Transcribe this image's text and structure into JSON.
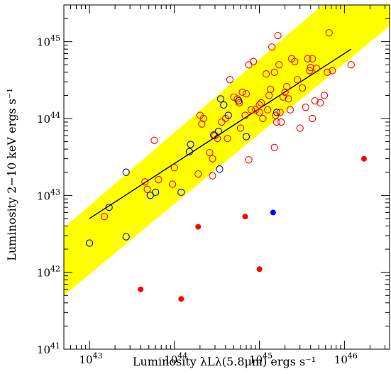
{
  "chart_data": {
    "type": "scatter",
    "title": "",
    "xlabel": "Luminosity λLλ(5.8μm) ergs s⁻¹",
    "ylabel": "Luminosity 2−10 keV ergs s⁻¹",
    "xscale": "log",
    "yscale": "log",
    "xlim": [
      5e+42,
      3.4e+46
    ],
    "ylim": [
      1e+41,
      3e+45
    ],
    "grid": false,
    "legend": "none",
    "x_ticks": [
      {
        "value": 1e+43,
        "label": "10^43"
      },
      {
        "value": 1e+44,
        "label": "10^44"
      },
      {
        "value": 1e+45,
        "label": "10^45"
      },
      {
        "value": 1e+46,
        "label": "10^46"
      }
    ],
    "y_ticks": [
      {
        "value": 1e+41,
        "label": "10^41"
      },
      {
        "value": 1e+42,
        "label": "10^42"
      },
      {
        "value": 1e+43,
        "label": "10^43"
      },
      {
        "value": 1e+44,
        "label": "10^44"
      },
      {
        "value": 1e+45,
        "label": "10^45"
      }
    ],
    "band": {
      "color": "#ffff00",
      "lower": [
        [
          5e+42,
          5e+41
        ],
        [
          3.4e+46,
          1.6e+45
        ]
      ],
      "upper": [
        [
          5e+42,
          3.8e+42
        ],
        [
          3.4e+46,
          1.7e+46
        ]
      ]
    },
    "fit_line": {
      "color": "#000000",
      "points": [
        [
          1e+43,
          5e+42
        ],
        [
          1.2e+46,
          8e+44
        ]
      ]
    },
    "series": [
      {
        "marker": "open-circle",
        "color": "#ff0000",
        "points": [
          [
            1.5e+43,
            5.3e+42
          ],
          [
            4.5e+43,
            1.5e+43
          ],
          [
            5.8e+43,
            5.2e+43
          ],
          [
            4.8e+43,
            1.2e+43
          ],
          [
            6.5e+43,
            1.6e+43
          ],
          [
            9.5e+43,
            1.4e+43
          ],
          [
            1e+44,
            2.3e+43
          ],
          [
            1.9e+44,
            1.9e+43
          ],
          [
            2e+44,
            1.1e+44
          ],
          [
            2.2e+44,
            1e+44
          ],
          [
            2.6e+44,
            3.6e+43
          ],
          [
            2.8e+44,
            3e+43
          ],
          [
            2.8e+44,
            1.8e+43
          ],
          [
            3e+44,
            6e+43
          ],
          [
            3.2e+44,
            5.5e+43
          ],
          [
            3.6e+44,
            9e+43
          ],
          [
            4e+44,
            1e+44
          ],
          [
            4.2e+44,
            5.5e+43
          ],
          [
            4.5e+44,
            3.2e+44
          ],
          [
            5e+44,
            1.9e+44
          ],
          [
            5.5e+44,
            1.8e+44
          ],
          [
            5.8e+44,
            1.6e+44
          ],
          [
            6e+44,
            7.5e+43
          ],
          [
            6.3e+44,
            2.2e+44
          ],
          [
            6.8e+44,
            1.1e+44
          ],
          [
            7e+44,
            2.1e+44
          ],
          [
            7.5e+44,
            5e+44
          ],
          [
            8e+44,
            1.3e+44
          ],
          [
            8.5e+44,
            5.5e+44
          ],
          [
            9e+44,
            1.3e+44
          ],
          [
            1e+45,
            1.5e+44
          ],
          [
            1e+45,
            1.2e+44
          ],
          [
            1.05e+45,
            1.6e+44
          ],
          [
            1.1e+45,
            1e+44
          ],
          [
            1.2e+45,
            3.8e+44
          ],
          [
            1.25e+45,
            1.3e+44
          ],
          [
            1.3e+45,
            2e+44
          ],
          [
            1.35e+45,
            2.4e+44
          ],
          [
            1.4e+45,
            8.5e+44
          ],
          [
            1.5e+45,
            4e+44
          ],
          [
            1.55e+45,
            1.1e+44
          ],
          [
            1.6e+45,
            9e+43
          ],
          [
            1.65e+45,
            1.2e+45
          ],
          [
            1.7e+45,
            5e+44
          ],
          [
            1.75e+45,
            1.2e+44
          ],
          [
            1.8e+45,
            9e+43
          ],
          [
            1.9e+45,
            1.9e+44
          ],
          [
            2e+45,
            2.2e+44
          ],
          [
            2.1e+45,
            2.6e+44
          ],
          [
            2.2e+45,
            1.8e+44
          ],
          [
            2.3e+45,
            1.3e+44
          ],
          [
            2.4e+45,
            6e+44
          ],
          [
            2.6e+45,
            5.5e+44
          ],
          [
            2.8e+45,
            3.2e+44
          ],
          [
            3e+45,
            7.5e+43
          ],
          [
            3.2e+45,
            2.5e+44
          ],
          [
            3.5e+45,
            1.4e+44
          ],
          [
            3.7e+45,
            6e+44
          ],
          [
            3.9e+45,
            4.2e+44
          ],
          [
            4e+45,
            4.6e+44
          ],
          [
            4.2e+45,
            6e+44
          ],
          [
            4.5e+45,
            1.7e+44
          ],
          [
            4.7e+45,
            4.5e+44
          ],
          [
            5.2e+45,
            1.6e+44
          ],
          [
            5.8e+45,
            2e+44
          ],
          [
            6.3e+45,
            4e+44
          ],
          [
            6.6e+45,
            1.3e+45
          ],
          [
            7.2e+45,
            4.2e+44
          ],
          [
            1.2e+46,
            5e+44
          ],
          [
            7.5e+44,
            2.9e+43
          ],
          [
            1.5e+45,
            4.2e+43
          ],
          [
            4.2e+45,
            1e+44
          ],
          [
            2.1e+44,
            8.5e+43
          ]
        ]
      },
      {
        "marker": "open-circle",
        "color": "#0000cc",
        "points": [
          [
            1e+43,
            2.4e+42
          ],
          [
            1.7e+43,
            7e+42
          ],
          [
            2.7e+43,
            2e+43
          ],
          [
            2.7e+43,
            2.9e+42
          ],
          [
            5.2e+43,
            1e+43
          ],
          [
            6e+43,
            1.1e+43
          ],
          [
            1.2e+44,
            1.1e+43
          ],
          [
            1.5e+44,
            3.7e+43
          ],
          [
            1.55e+44,
            4.6e+43
          ],
          [
            2.9e+44,
            6.1e+43
          ],
          [
            3.3e+44,
            6.8e+43
          ],
          [
            3.4e+44,
            2.2e+43
          ],
          [
            3.5e+44,
            1.8e+44
          ],
          [
            3.8e+44,
            1.5e+44
          ],
          [
            4.3e+44,
            1.1e+44
          ],
          [
            5.7e+44,
            1.7e+44
          ],
          [
            7e+44,
            5.8e+43
          ],
          [
            1.6e+45,
            1.2e+44
          ]
        ]
      },
      {
        "marker": "filled-circle",
        "color": "#ff0000",
        "points": [
          [
            4e+43,
            6e+41
          ],
          [
            1.2e+44,
            4.5e+41
          ],
          [
            1.9e+44,
            3.9e+42
          ],
          [
            6.8e+44,
            5.3e+42
          ],
          [
            1e+45,
            1.1e+42
          ],
          [
            1.7e+46,
            3e+43
          ]
        ]
      },
      {
        "marker": "filled-circle",
        "color": "#0000ff",
        "points": [
          [
            1.45e+45,
            6e+42
          ]
        ]
      }
    ]
  }
}
